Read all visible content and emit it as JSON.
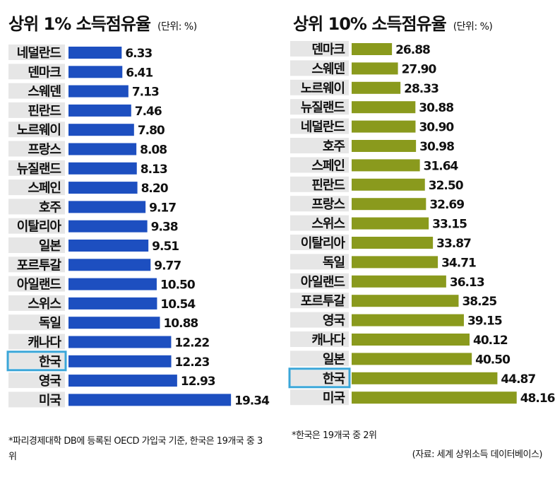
{
  "chart_data": [
    {
      "type": "bar",
      "orientation": "horizontal",
      "title": "상위 1% 소득점유율",
      "unit": "(단위: %)",
      "categories": [
        "네덜란드",
        "덴마크",
        "스웨덴",
        "핀란드",
        "노르웨이",
        "프랑스",
        "뉴질랜드",
        "스페인",
        "호주",
        "이탈리아",
        "일본",
        "포르투갈",
        "아일랜드",
        "스위스",
        "독일",
        "캐나다",
        "한국",
        "영국",
        "미국"
      ],
      "values": [
        6.33,
        6.41,
        7.13,
        7.46,
        7.8,
        8.08,
        8.13,
        8.2,
        9.17,
        9.38,
        9.51,
        9.77,
        10.5,
        10.54,
        10.88,
        12.22,
        12.23,
        12.93,
        19.34
      ],
      "value_labels": [
        "6.33",
        "6.41",
        "7.13",
        "7.46",
        "7.80",
        "8.08",
        "8.13",
        "8.20",
        "9.17",
        "9.38",
        "9.51",
        "9.77",
        "10.50",
        "10.54",
        "10.88",
        "12.22",
        "12.23",
        "12.93",
        "19.34"
      ],
      "highlight": "한국",
      "bar_color": "#1d4fc0",
      "note": "*파리경제대학 DB에 등록된 OECD 가입국 기준, 한국은 19개국 중 3위"
    },
    {
      "type": "bar",
      "orientation": "horizontal",
      "title": "상위 10% 소득점유율",
      "unit": "(단위: %)",
      "categories": [
        "덴마크",
        "스웨덴",
        "노르웨이",
        "뉴질랜드",
        "네덜란드",
        "호주",
        "스페인",
        "핀란드",
        "프랑스",
        "스위스",
        "이탈리아",
        "독일",
        "아일랜드",
        "포르투갈",
        "영국",
        "캐나다",
        "일본",
        "한국",
        "미국"
      ],
      "values": [
        26.88,
        27.9,
        28.33,
        30.88,
        30.9,
        30.98,
        31.64,
        32.5,
        32.69,
        33.15,
        33.87,
        34.71,
        36.13,
        38.25,
        39.15,
        40.12,
        40.5,
        44.87,
        48.16
      ],
      "value_labels": [
        "26.88",
        "27.90",
        "28.33",
        "30.88",
        "30.90",
        "30.98",
        "31.64",
        "32.50",
        "32.69",
        "33.15",
        "33.87",
        "34.71",
        "36.13",
        "38.25",
        "39.15",
        "40.12",
        "40.50",
        "44.87",
        "48.16"
      ],
      "highlight": "한국",
      "bar_color": "#8a9a1d",
      "note": "*한국은 19개국 중 2위",
      "source": "(자료: 세계 상위소득 데이터베이스)"
    }
  ],
  "colors": {
    "label_bg": "#e6e6e6",
    "highlight_border": "#3aa6d8"
  }
}
